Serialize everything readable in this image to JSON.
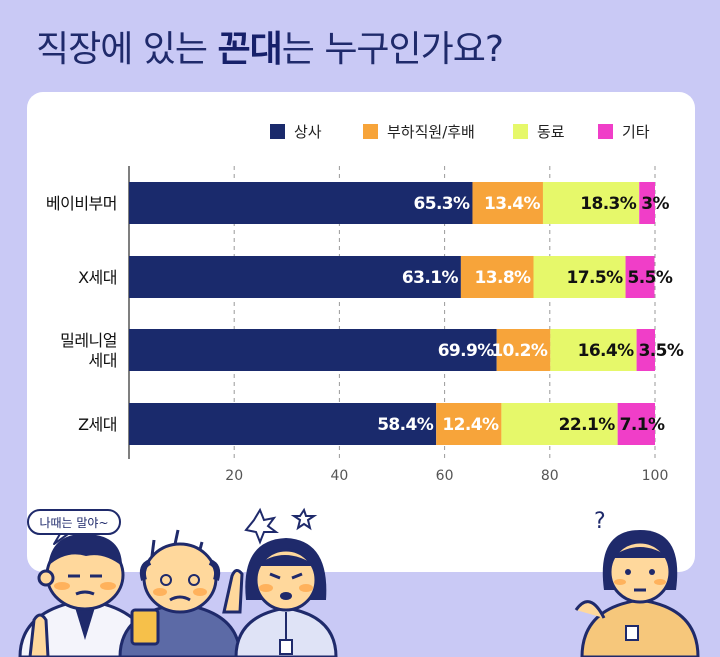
{
  "header": {
    "title_pre": "직장에 있는 ",
    "title_em": "꼰대",
    "title_post": "는 누구인가요?"
  },
  "speech_bubble": "나때는 말야~",
  "chart_data": {
    "type": "bar",
    "orientation": "horizontal-stacked",
    "title": "직장에 있는 꼰대는 누구인가요?",
    "categories": [
      [
        "베이비부머"
      ],
      [
        "X세대"
      ],
      [
        "밀레니얼",
        "세대"
      ],
      [
        "Z세대"
      ]
    ],
    "series": [
      {
        "name": "상사",
        "color": "#1a2a6c",
        "values": [
          65.3,
          63.1,
          69.9,
          58.4
        ],
        "labels": [
          "65.3%",
          "63.1%",
          "69.9%",
          "58.4%"
        ],
        "label_color": "#ffffff"
      },
      {
        "name": "부하직원/후배",
        "color": "#f7a43a",
        "values": [
          13.4,
          13.8,
          10.2,
          12.4
        ],
        "labels": [
          "13.4%",
          "13.8%",
          "10.2%",
          "12.4%"
        ],
        "label_color": "#ffffff"
      },
      {
        "name": "동료",
        "color": "#e6f86a",
        "values": [
          18.3,
          17.5,
          16.4,
          22.1
        ],
        "labels": [
          "18.3%",
          "17.5%",
          "16.4%",
          "22.1%"
        ],
        "label_color": "#111111"
      },
      {
        "name": "기타",
        "color": "#f03ec8",
        "values": [
          3,
          5.5,
          3.5,
          7.1
        ],
        "labels": [
          "3%",
          "5.5%",
          "3.5%",
          "7.1%"
        ],
        "label_color": "#111111"
      }
    ],
    "xlim": [
      0,
      100
    ],
    "xticks": [
      "20",
      "40",
      "60",
      "80",
      "100"
    ],
    "xtick_values": [
      20,
      40,
      60,
      80,
      100
    ],
    "grid": "vertical-dashed",
    "legend_position": "top-right"
  }
}
